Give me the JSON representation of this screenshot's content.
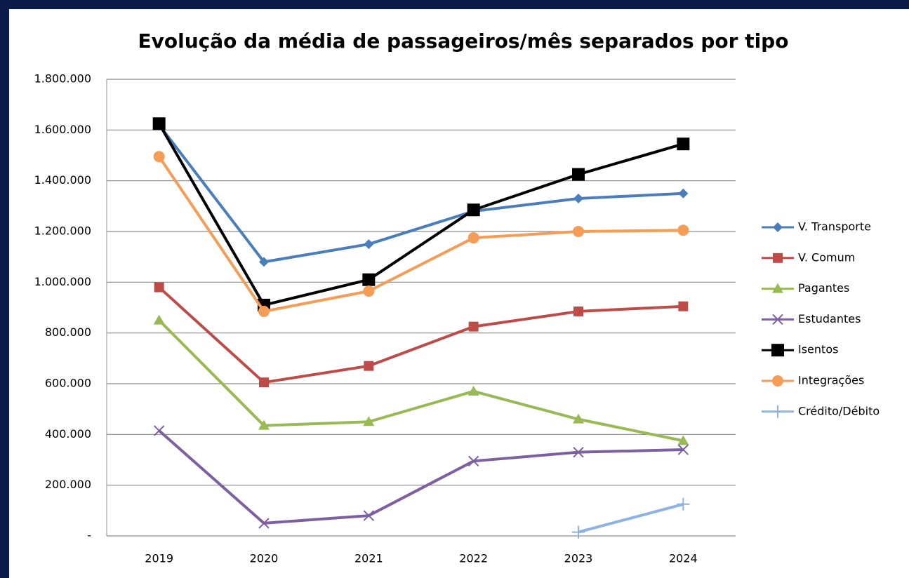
{
  "chart_data": {
    "type": "line",
    "title": "Evolução  da média de passageiros/mês  separados  por tipo",
    "categories": [
      "2019",
      "2020",
      "2021",
      "2022",
      "2023",
      "2024"
    ],
    "ylim": [
      0,
      1800000
    ],
    "yticks": [
      {
        "value": 0,
        "label": "-"
      },
      {
        "value": 200000,
        "label": "200.000"
      },
      {
        "value": 400000,
        "label": "400.000"
      },
      {
        "value": 600000,
        "label": "600.000"
      },
      {
        "value": 800000,
        "label": "800.000"
      },
      {
        "value": 1000000,
        "label": "1.000.000"
      },
      {
        "value": 1200000,
        "label": "1.200.000"
      },
      {
        "value": 1400000,
        "label": "1.400.000"
      },
      {
        "value": 1600000,
        "label": "1.600.000"
      },
      {
        "value": 1800000,
        "label": "1.800.000"
      }
    ],
    "grid": true,
    "legend": "right",
    "series": [
      {
        "name": "V. Transporte",
        "color": "#4a7ebb",
        "marker": "diamond",
        "values": [
          1620000,
          1080000,
          1150000,
          1280000,
          1330000,
          1350000
        ]
      },
      {
        "name": "V. Comum",
        "color": "#be4b48",
        "marker": "square",
        "values": [
          980000,
          605000,
          670000,
          825000,
          885000,
          905000
        ]
      },
      {
        "name": "Pagantes",
        "color": "#98b954",
        "marker": "triangle",
        "values": [
          850000,
          435000,
          450000,
          570000,
          460000,
          375000
        ]
      },
      {
        "name": "Estudantes",
        "color": "#7d60a0",
        "marker": "x",
        "values": [
          415000,
          50000,
          80000,
          295000,
          330000,
          340000
        ]
      },
      {
        "name": "Isentos",
        "color": "#000000",
        "marker": "bigsquare",
        "values": [
          1625000,
          910000,
          1010000,
          1285000,
          1425000,
          1545000
        ]
      },
      {
        "name": "Integrações",
        "color": "#f59d56",
        "marker": "circle",
        "values": [
          1495000,
          885000,
          965000,
          1175000,
          1200000,
          1205000
        ]
      },
      {
        "name": "Crédito/Débito",
        "color": "#8db3e2",
        "marker": "plus",
        "values": [
          null,
          null,
          null,
          null,
          15000,
          125000
        ]
      }
    ]
  }
}
